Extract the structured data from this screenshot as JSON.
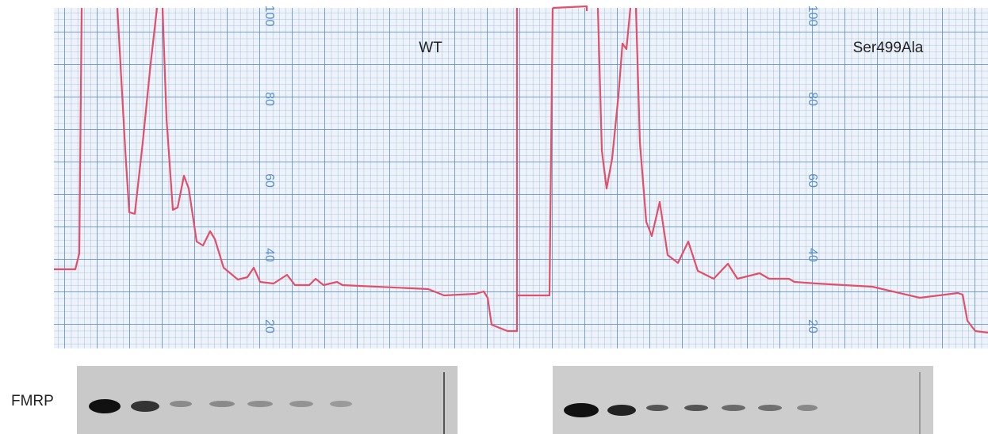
{
  "profile": {
    "labels": [
      "WT",
      "Ser499Ala"
    ],
    "scale_left": [
      100,
      80,
      60,
      40,
      20
    ],
    "scale_right": [
      100,
      80,
      60,
      40,
      20
    ]
  },
  "blot": {
    "label": "FMRP"
  }
}
